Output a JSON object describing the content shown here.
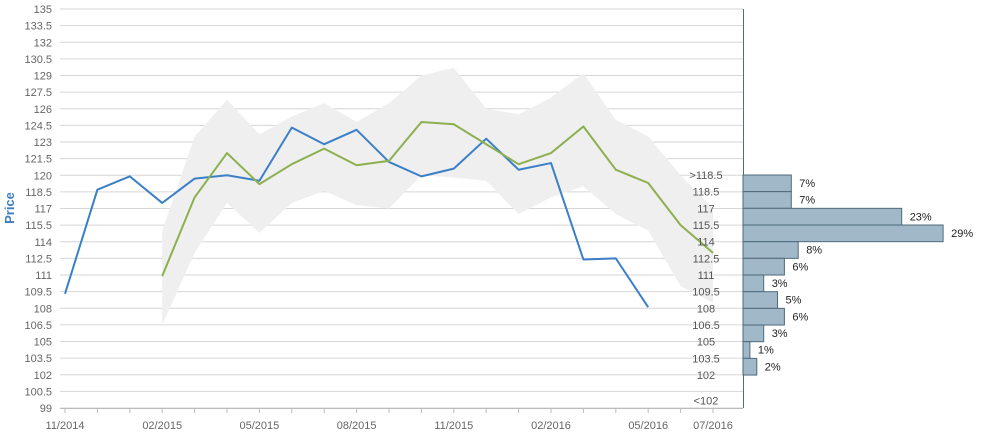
{
  "chart_data": {
    "type": "line",
    "ylabel": "Price",
    "ylim": [
      99,
      135
    ],
    "y_ticks": [
      "135",
      "133.5",
      "132",
      "130.5",
      "129",
      "127.5",
      "126",
      "124.5",
      "123",
      "121.5",
      "120",
      "118.5",
      "117",
      "115.5",
      "114",
      "112.5",
      "111",
      "109.5",
      "108",
      "106.5",
      "105",
      "103.5",
      "102",
      "100.5",
      "99"
    ],
    "x_ticks": [
      "11/2014",
      "02/2015",
      "05/2015",
      "08/2015",
      "11/2015",
      "02/2016",
      "05/2016",
      "07/2016"
    ],
    "grid": true,
    "series": [
      {
        "color": "#3a7fc8",
        "x": [
          "11/2014",
          "12/2014",
          "01/2015",
          "02/2015",
          "03/2015",
          "04/2015",
          "05/2015",
          "06/2015",
          "07/2015",
          "08/2015",
          "09/2015",
          "10/2015",
          "11/2015",
          "12/2015",
          "01/2016",
          "02/2016",
          "03/2016",
          "04/2016",
          "05/2016"
        ],
        "values": [
          109.3,
          118.7,
          119.9,
          117.5,
          119.7,
          120.0,
          119.5,
          124.3,
          122.8,
          124.1,
          121.2,
          119.9,
          120.6,
          123.3,
          120.5,
          121.1,
          112.4,
          112.5,
          108.1
        ]
      },
      {
        "color": "#8db04f",
        "x": [
          "02/2015",
          "03/2015",
          "04/2015",
          "05/2015",
          "06/2015",
          "07/2015",
          "08/2015",
          "09/2015",
          "10/2015",
          "11/2015",
          "12/2015",
          "01/2016",
          "02/2016",
          "03/2016",
          "04/2016",
          "05/2016",
          "06/2016",
          "07/2016"
        ],
        "values": [
          110.9,
          118.0,
          122.0,
          119.2,
          121.0,
          122.4,
          120.9,
          121.3,
          124.8,
          124.6,
          122.8,
          121.0,
          122.0,
          124.4,
          120.5,
          119.3,
          115.5,
          113.0
        ]
      }
    ],
    "band": {
      "color": "#efefef",
      "x": [
        "02/2015",
        "03/2015",
        "04/2015",
        "05/2015",
        "06/2015",
        "07/2015",
        "08/2015",
        "09/2015",
        "10/2015",
        "11/2015",
        "12/2015",
        "01/2016",
        "02/2016",
        "03/2016",
        "04/2016",
        "05/2016",
        "06/2016",
        "07/2016"
      ],
      "upper": [
        115.0,
        123.5,
        126.8,
        123.7,
        125.3,
        126.5,
        124.8,
        126.5,
        129.0,
        129.7,
        126.0,
        125.5,
        127.0,
        129.2,
        125.0,
        123.5,
        120.0,
        117.0
      ],
      "lower": [
        106.5,
        113.0,
        117.5,
        114.8,
        117.5,
        118.6,
        117.3,
        117.0,
        120.0,
        119.8,
        119.5,
        116.5,
        118.0,
        119.0,
        116.5,
        115.0,
        110.0,
        108.5
      ]
    },
    "distribution": {
      "color": "#a0b8c8",
      "bins": [
        {
          "label": ">118.5",
          "pct": "7%",
          "value": 7
        },
        {
          "label": "118.5",
          "pct": "7%",
          "value": 7
        },
        {
          "label": "117",
          "pct": "23%",
          "value": 23
        },
        {
          "label": "115.5",
          "pct": "29%",
          "value": 29
        },
        {
          "label": "114",
          "pct": "8%",
          "value": 8
        },
        {
          "label": "112.5",
          "pct": "6%",
          "value": 6
        },
        {
          "label": "111",
          "pct": "3%",
          "value": 3
        },
        {
          "label": "109.5",
          "pct": "5%",
          "value": 5
        },
        {
          "label": "108",
          "pct": "6%",
          "value": 6
        },
        {
          "label": "106.5",
          "pct": "3%",
          "value": 3
        },
        {
          "label": "105",
          "pct": "1%",
          "value": 1
        },
        {
          "label": "103.5",
          "pct": "2%",
          "value": 2
        },
        {
          "label": "102",
          "pct": "",
          "value": 0
        },
        {
          "label": "<102",
          "pct": "",
          "value": 0
        }
      ]
    }
  }
}
